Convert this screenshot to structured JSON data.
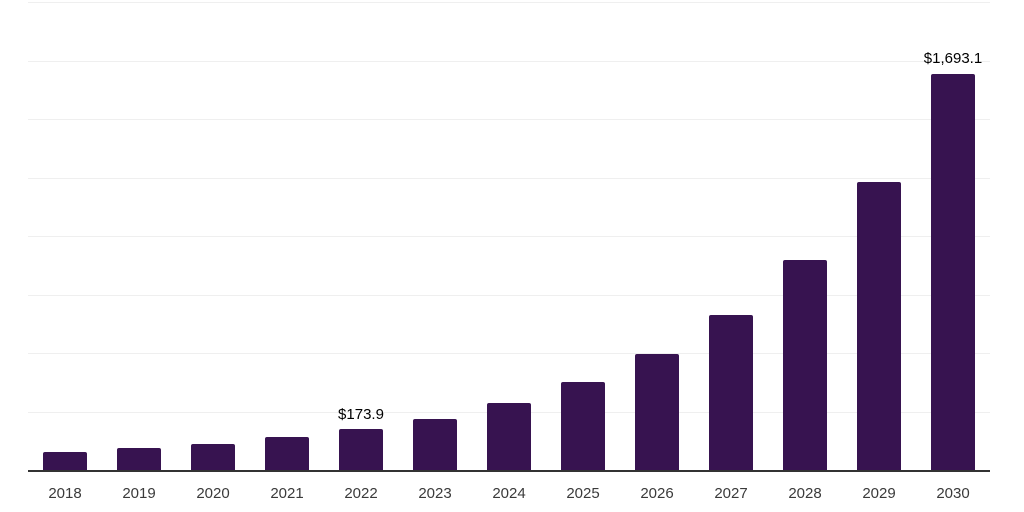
{
  "chart_data": {
    "type": "bar",
    "title": "",
    "xlabel": "",
    "ylabel": "",
    "categories": [
      "2018",
      "2019",
      "2020",
      "2021",
      "2022",
      "2023",
      "2024",
      "2025",
      "2026",
      "2027",
      "2028",
      "2029",
      "2030"
    ],
    "values": [
      75,
      92,
      113,
      140,
      173.9,
      220,
      287,
      375,
      494,
      662,
      897,
      1230,
      1693.1
    ],
    "value_labels": [
      "",
      "",
      "",
      "",
      "$173.9",
      "",
      "",
      "",
      "",
      "",
      "",
      "",
      "$1,693.1"
    ],
    "ylim": [
      0,
      2000
    ],
    "gridline_step": 250,
    "grid": "horizontal-only",
    "y_tick_labels_visible": false,
    "legend_position": "none",
    "colors": {
      "bar": "#371350",
      "gridline": "#efefef",
      "axis_line": "#333333",
      "tick_label": "#3a3a3a",
      "data_label": "#000000",
      "background": "#ffffff"
    }
  }
}
